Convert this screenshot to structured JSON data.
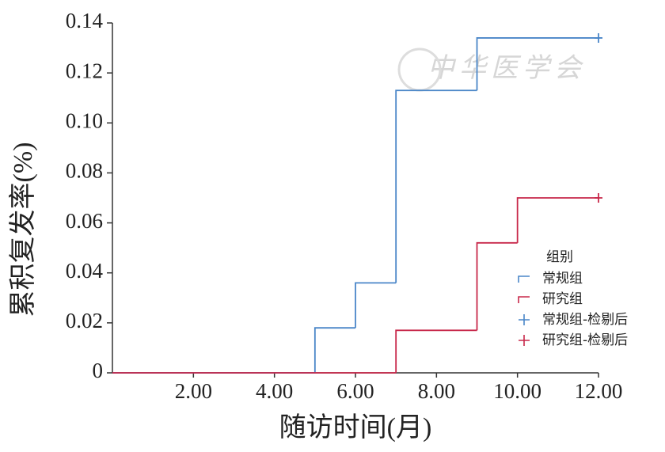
{
  "chart_data": {
    "type": "step",
    "xlabel": "随访时间(月)",
    "ylabel": "累积复发率(%)",
    "watermark": "中华医学会",
    "legend_title": "组别",
    "legend": "right",
    "xlim": [
      0,
      12
    ],
    "xticks": [
      {
        "value": 2,
        "label": "2.00"
      },
      {
        "value": 4,
        "label": "4.00"
      },
      {
        "value": 6,
        "label": "6.00"
      },
      {
        "value": 8,
        "label": "8.00"
      },
      {
        "value": 10,
        "label": "10.00"
      },
      {
        "value": 12,
        "label": "12.00"
      }
    ],
    "ylim": [
      0,
      0.14
    ],
    "yticks": [
      0,
      0.02,
      0.04,
      0.06,
      0.08,
      {
        "value": 0.1,
        "label": "0.10"
      },
      0.12,
      0.14
    ],
    "series": [
      {
        "name": "常规组",
        "kind": "step",
        "color": "#4a86c8",
        "x": [
          0,
          5,
          6,
          7,
          9,
          12
        ],
        "values": [
          0,
          0.018,
          0.036,
          0.113,
          0.134,
          0.134
        ]
      },
      {
        "name": "研究组",
        "kind": "step",
        "color": "#c8284a",
        "x": [
          0,
          7,
          9,
          10,
          12
        ],
        "values": [
          0,
          0.017,
          0.052,
          0.07,
          0.07
        ]
      },
      {
        "name": "常规组-检剔后",
        "kind": "censor",
        "color": "#4a86c8",
        "x": [
          12
        ],
        "values": [
          0.134
        ]
      },
      {
        "name": "研究组-检剔后",
        "kind": "censor",
        "color": "#c8284a",
        "x": [
          12
        ],
        "values": [
          0.07
        ]
      }
    ]
  }
}
